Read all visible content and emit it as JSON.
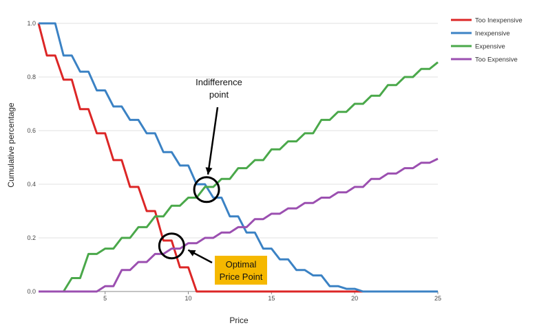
{
  "chart_data": {
    "type": "line",
    "title": "",
    "xlabel": "Price",
    "ylabel": "Cumulative percentage",
    "xlim": [
      1,
      25
    ],
    "ylim": [
      0,
      1
    ],
    "x_ticks": [
      5,
      10,
      15,
      20,
      25
    ],
    "x_tick_labels": [
      "5",
      "10",
      "15",
      "20",
      "25"
    ],
    "y_ticks": [
      0,
      0.2,
      0.4,
      0.6,
      0.8,
      1
    ],
    "y_tick_labels": [
      "0.0",
      "0.2",
      "0.4",
      "0.6",
      "0.8",
      "1.0"
    ],
    "grid": true,
    "legend_position": "top-right",
    "series": [
      {
        "name": "Too Inexpensive",
        "color": "#dc2626",
        "points": [
          [
            1,
            1.0
          ],
          [
            1.5,
            0.88
          ],
          [
            2,
            0.88
          ],
          [
            2.5,
            0.79
          ],
          [
            3,
            0.79
          ],
          [
            3.5,
            0.68
          ],
          [
            4,
            0.68
          ],
          [
            4.5,
            0.59
          ],
          [
            5,
            0.59
          ],
          [
            5.5,
            0.49
          ],
          [
            6,
            0.49
          ],
          [
            6.5,
            0.39
          ],
          [
            7,
            0.39
          ],
          [
            7.5,
            0.3
          ],
          [
            8,
            0.3
          ],
          [
            8.5,
            0.19
          ],
          [
            9,
            0.19
          ],
          [
            9.5,
            0.09
          ],
          [
            10,
            0.09
          ],
          [
            10.5,
            0.0
          ],
          [
            25,
            0.0
          ]
        ]
      },
      {
        "name": "Inexpensive",
        "color": "#3b82c4",
        "points": [
          [
            1,
            1.0
          ],
          [
            2,
            1.0
          ],
          [
            2.5,
            0.88
          ],
          [
            3,
            0.88
          ],
          [
            3.5,
            0.82
          ],
          [
            4,
            0.82
          ],
          [
            4.5,
            0.75
          ],
          [
            5,
            0.75
          ],
          [
            5.5,
            0.69
          ],
          [
            6,
            0.69
          ],
          [
            6.5,
            0.64
          ],
          [
            7,
            0.64
          ],
          [
            7.5,
            0.59
          ],
          [
            8,
            0.59
          ],
          [
            8.5,
            0.52
          ],
          [
            9,
            0.52
          ],
          [
            9.5,
            0.47
          ],
          [
            10,
            0.47
          ],
          [
            10.5,
            0.4
          ],
          [
            11,
            0.4
          ],
          [
            11.5,
            0.35
          ],
          [
            12,
            0.35
          ],
          [
            12.5,
            0.28
          ],
          [
            13,
            0.28
          ],
          [
            13.5,
            0.22
          ],
          [
            14,
            0.22
          ],
          [
            14.5,
            0.16
          ],
          [
            15,
            0.16
          ],
          [
            15.5,
            0.12
          ],
          [
            16,
            0.12
          ],
          [
            16.5,
            0.08
          ],
          [
            17,
            0.08
          ],
          [
            17.5,
            0.06
          ],
          [
            18,
            0.06
          ],
          [
            18.5,
            0.02
          ],
          [
            19,
            0.02
          ],
          [
            19.5,
            0.01
          ],
          [
            20,
            0.01
          ],
          [
            20.5,
            0.0
          ],
          [
            25,
            0.0
          ]
        ]
      },
      {
        "name": "Expensive",
        "color": "#4aa84a",
        "points": [
          [
            1,
            0.0
          ],
          [
            2.5,
            0.0
          ],
          [
            3,
            0.05
          ],
          [
            3.5,
            0.05
          ],
          [
            4,
            0.14
          ],
          [
            4.5,
            0.14
          ],
          [
            5,
            0.16
          ],
          [
            5.5,
            0.16
          ],
          [
            6,
            0.2
          ],
          [
            6.5,
            0.2
          ],
          [
            7,
            0.24
          ],
          [
            7.5,
            0.24
          ],
          [
            8,
            0.28
          ],
          [
            8.5,
            0.28
          ],
          [
            9,
            0.32
          ],
          [
            9.5,
            0.32
          ],
          [
            10,
            0.35
          ],
          [
            10.5,
            0.35
          ],
          [
            11,
            0.39
          ],
          [
            11.5,
            0.39
          ],
          [
            12,
            0.42
          ],
          [
            12.5,
            0.42
          ],
          [
            13,
            0.46
          ],
          [
            13.5,
            0.46
          ],
          [
            14,
            0.49
          ],
          [
            14.5,
            0.49
          ],
          [
            15,
            0.53
          ],
          [
            15.5,
            0.53
          ],
          [
            16,
            0.56
          ],
          [
            16.5,
            0.56
          ],
          [
            17,
            0.59
          ],
          [
            17.5,
            0.59
          ],
          [
            18,
            0.64
          ],
          [
            18.5,
            0.64
          ],
          [
            19,
            0.67
          ],
          [
            19.5,
            0.67
          ],
          [
            20,
            0.7
          ],
          [
            20.5,
            0.7
          ],
          [
            21,
            0.73
          ],
          [
            21.5,
            0.73
          ],
          [
            22,
            0.77
          ],
          [
            22.5,
            0.77
          ],
          [
            23,
            0.8
          ],
          [
            23.5,
            0.8
          ],
          [
            24,
            0.83
          ],
          [
            24.5,
            0.83
          ],
          [
            25,
            0.855
          ]
        ]
      },
      {
        "name": "Too Expensive",
        "color": "#9b4fb0",
        "points": [
          [
            1,
            0.0
          ],
          [
            4.5,
            0.0
          ],
          [
            5,
            0.02
          ],
          [
            5.5,
            0.02
          ],
          [
            6,
            0.08
          ],
          [
            6.5,
            0.08
          ],
          [
            7,
            0.11
          ],
          [
            7.5,
            0.11
          ],
          [
            8,
            0.14
          ],
          [
            8.5,
            0.14
          ],
          [
            9,
            0.16
          ],
          [
            9.5,
            0.16
          ],
          [
            10,
            0.18
          ],
          [
            10.5,
            0.18
          ],
          [
            11,
            0.2
          ],
          [
            11.5,
            0.2
          ],
          [
            12,
            0.22
          ],
          [
            12.5,
            0.22
          ],
          [
            13,
            0.24
          ],
          [
            13.5,
            0.24
          ],
          [
            14,
            0.27
          ],
          [
            14.5,
            0.27
          ],
          [
            15,
            0.29
          ],
          [
            15.5,
            0.29
          ],
          [
            16,
            0.31
          ],
          [
            16.5,
            0.31
          ],
          [
            17,
            0.33
          ],
          [
            17.5,
            0.33
          ],
          [
            18,
            0.35
          ],
          [
            18.5,
            0.35
          ],
          [
            19,
            0.37
          ],
          [
            19.5,
            0.37
          ],
          [
            20,
            0.39
          ],
          [
            20.5,
            0.39
          ],
          [
            21,
            0.42
          ],
          [
            21.5,
            0.42
          ],
          [
            22,
            0.44
          ],
          [
            22.5,
            0.44
          ],
          [
            23,
            0.46
          ],
          [
            23.5,
            0.46
          ],
          [
            24,
            0.48
          ],
          [
            24.5,
            0.48
          ],
          [
            25,
            0.495
          ]
        ]
      }
    ],
    "annotations": [
      {
        "id": "indifference",
        "lines": [
          "Indifference",
          "point"
        ],
        "at": [
          11.1,
          0.38
        ],
        "boxed": false
      },
      {
        "id": "optimal",
        "lines": [
          "Optimal",
          "Price Point"
        ],
        "at": [
          9.0,
          0.17
        ],
        "boxed": true,
        "box_color": "#f5b800"
      }
    ]
  }
}
